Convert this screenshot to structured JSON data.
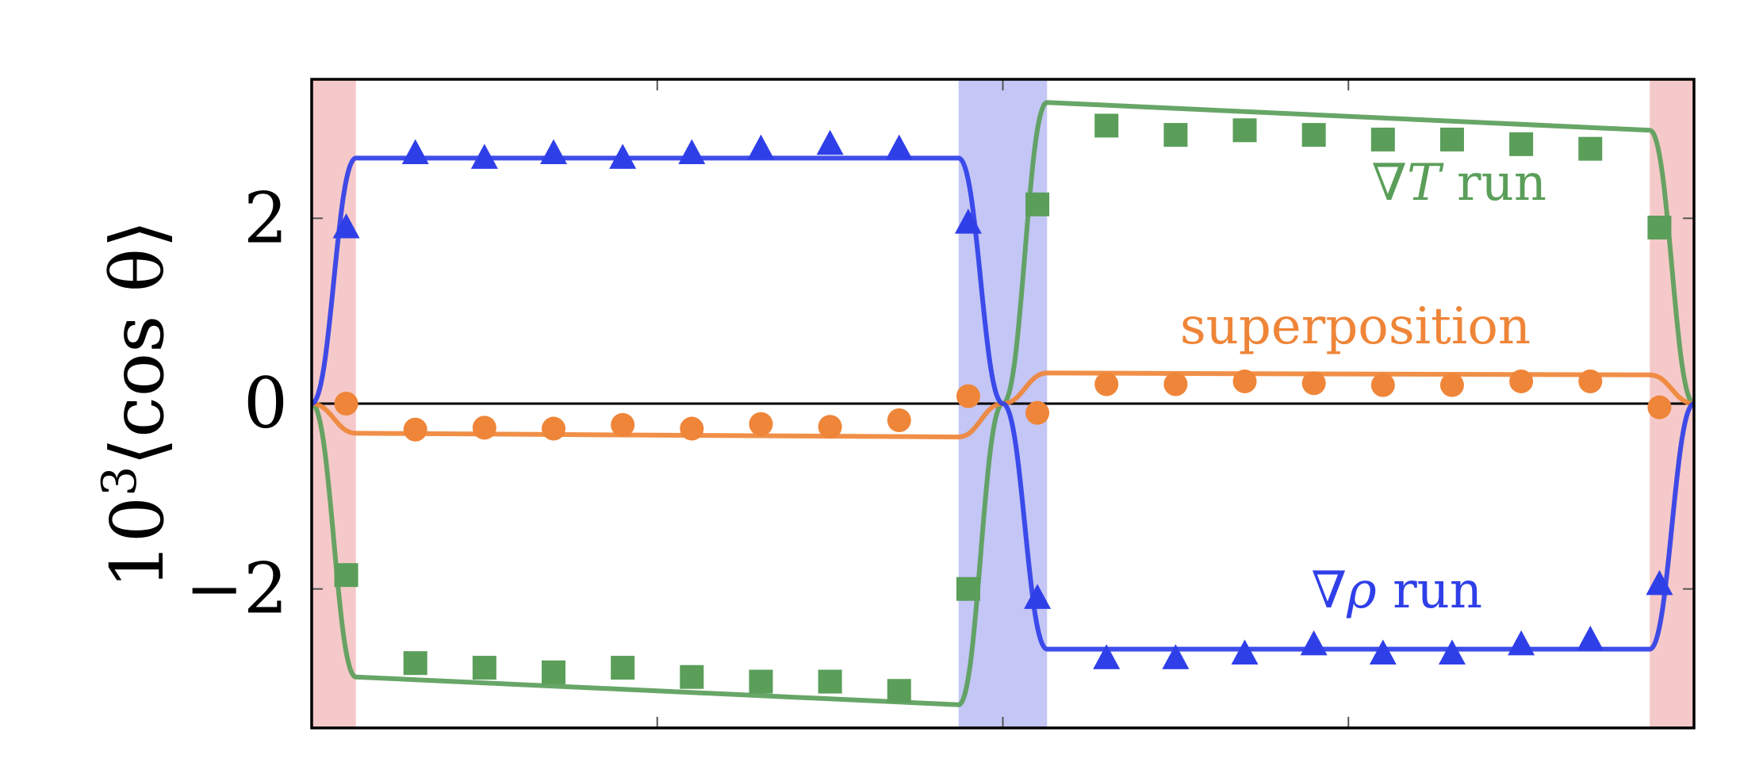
{
  "chart_data": {
    "type": "line",
    "ylabel": {
      "prefix": "10",
      "sup": "3",
      "body": "⟨cos θ⟩"
    },
    "xlim": [
      0,
      1
    ],
    "ylim": [
      -3.5,
      3.5
    ],
    "ytick_values": [
      -2,
      0,
      2
    ],
    "ytick_labels": [
      "−2",
      "0",
      "2"
    ],
    "xticks_unlabeled": [
      0.25,
      0.5,
      0.75
    ],
    "zero_line": true,
    "shaded_regions": [
      {
        "x": [
          0.0,
          0.032
        ],
        "color": "#f5c9c9"
      },
      {
        "x": [
          0.468,
          0.532
        ],
        "color": "#c4c6f5"
      },
      {
        "x": [
          0.968,
          1.0
        ],
        "color": "#f5c9c9"
      }
    ],
    "series": [
      {
        "name": "∇T run",
        "color": "#5a9e5a",
        "line": {
          "x": [
            0,
            0.032,
            0.468,
            0.5,
            0.532,
            0.968,
            1.0
          ],
          "y": [
            0,
            -2.95,
            -3.25,
            0,
            3.25,
            2.95,
            0
          ]
        },
        "marker": "square",
        "points": {
          "x": [
            0.025,
            0.075,
            0.125,
            0.175,
            0.225,
            0.275,
            0.325,
            0.375,
            0.425,
            0.475,
            0.525,
            0.575,
            0.625,
            0.675,
            0.725,
            0.775,
            0.825,
            0.875,
            0.925,
            0.975
          ],
          "y": [
            -1.85,
            -2.8,
            -2.85,
            -2.9,
            -2.85,
            -2.95,
            -3.0,
            -3.0,
            -3.1,
            -2.0,
            2.15,
            3.0,
            2.9,
            2.95,
            2.9,
            2.85,
            2.85,
            2.8,
            2.75,
            1.9
          ]
        }
      },
      {
        "name": "superposition",
        "color": "#ef8538",
        "line": {
          "x": [
            0,
            0.032,
            0.468,
            0.5,
            0.532,
            0.968,
            1.0
          ],
          "y": [
            0,
            -0.32,
            -0.36,
            0,
            0.33,
            0.31,
            0
          ]
        },
        "marker": "circle",
        "points": {
          "x": [
            0.025,
            0.075,
            0.125,
            0.175,
            0.225,
            0.275,
            0.325,
            0.375,
            0.425,
            0.475,
            0.525,
            0.575,
            0.625,
            0.675,
            0.725,
            0.775,
            0.825,
            0.875,
            0.925,
            0.975
          ],
          "y": [
            0.0,
            -0.28,
            -0.26,
            -0.27,
            -0.23,
            -0.27,
            -0.22,
            -0.25,
            -0.18,
            0.08,
            -0.1,
            0.21,
            0.21,
            0.24,
            0.22,
            0.2,
            0.2,
            0.24,
            0.24,
            -0.04
          ]
        }
      },
      {
        "name": "∇ρ run",
        "color": "#2f3fe8",
        "line": {
          "x": [
            0,
            0.032,
            0.468,
            0.5,
            0.532,
            0.968,
            1.0
          ],
          "y": [
            0,
            2.65,
            2.65,
            0,
            -2.65,
            -2.65,
            0
          ]
        },
        "marker": "triangle",
        "points": {
          "x": [
            0.025,
            0.075,
            0.125,
            0.175,
            0.225,
            0.275,
            0.325,
            0.375,
            0.425,
            0.475,
            0.525,
            0.575,
            0.625,
            0.675,
            0.725,
            0.775,
            0.825,
            0.875,
            0.925,
            0.975
          ],
          "y": [
            1.9,
            2.7,
            2.65,
            2.7,
            2.65,
            2.7,
            2.75,
            2.8,
            2.75,
            1.95,
            -2.1,
            -2.75,
            -2.75,
            -2.7,
            -2.6,
            -2.7,
            -2.7,
            -2.6,
            -2.55,
            -1.95
          ]
        }
      }
    ],
    "annotations": [
      {
        "series": "∇T run",
        "parts": [
          {
            "t": "∇",
            "i": false
          },
          {
            "t": "T",
            "i": true
          },
          {
            "t": " run",
            "i": false
          }
        ],
        "at": [
          0.83,
          2.2
        ]
      },
      {
        "series": "superposition",
        "parts": [
          {
            "t": "superposition",
            "i": false
          }
        ],
        "at": [
          0.755,
          0.65
        ]
      },
      {
        "series": "∇ρ run",
        "parts": [
          {
            "t": "∇",
            "i": false
          },
          {
            "t": "ρ",
            "i": true
          },
          {
            "t": " run",
            "i": false
          }
        ],
        "at": [
          0.785,
          -2.2
        ]
      }
    ]
  }
}
